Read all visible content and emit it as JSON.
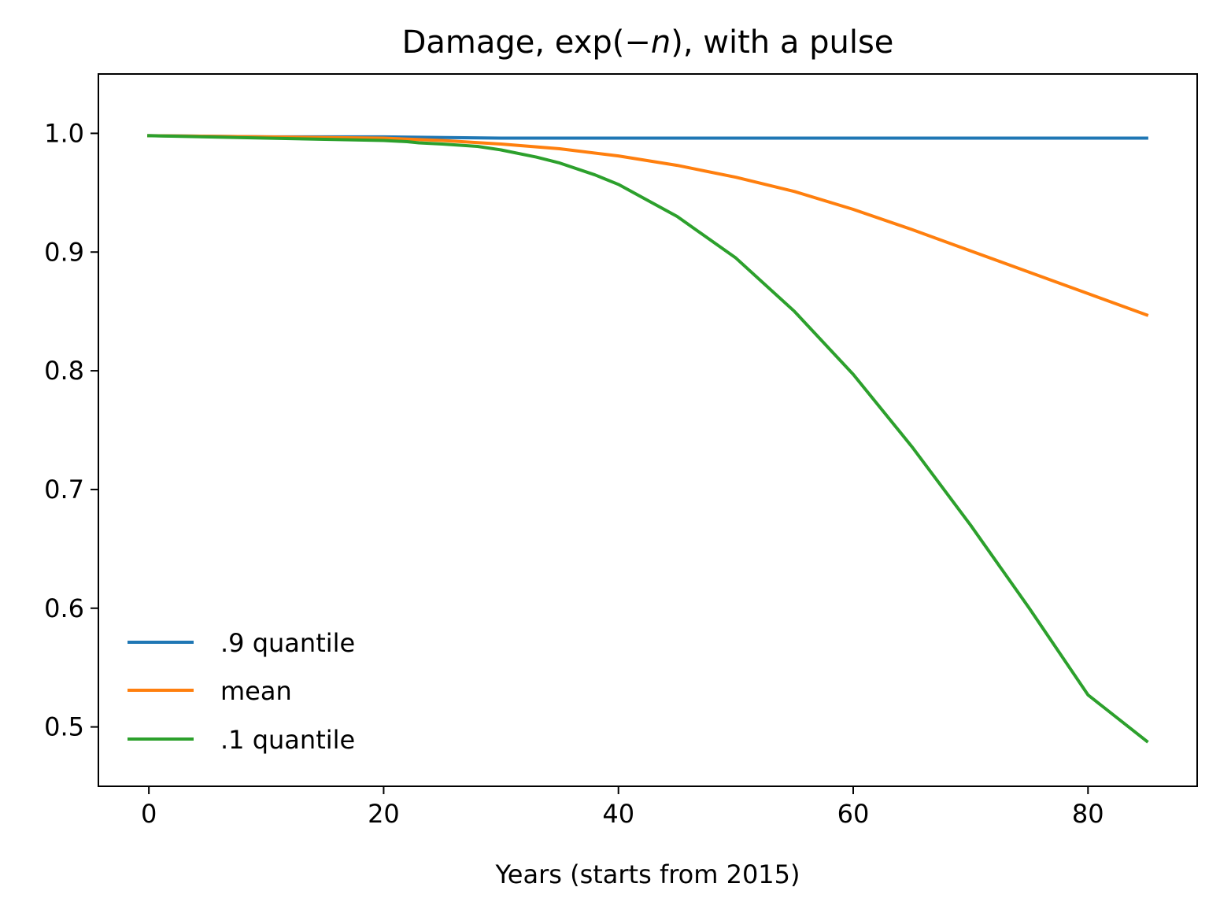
{
  "chart_data": {
    "type": "line",
    "title_parts": {
      "before": "Damage, exp(−",
      "italic": "n",
      "after": "), with a pulse"
    },
    "xlabel": "Years (starts from 2015)",
    "ylabel": "",
    "xlim": [
      -4.3,
      89.3
    ],
    "ylim": [
      0.45,
      1.05
    ],
    "xticks": [
      0,
      20,
      40,
      60,
      80
    ],
    "xtick_labels": [
      "0",
      "20",
      "40",
      "60",
      "80"
    ],
    "yticks": [
      0.5,
      0.6,
      0.7,
      0.8,
      0.9,
      1.0
    ],
    "ytick_labels": [
      "0.5",
      "0.6",
      "0.7",
      "0.8",
      "0.9",
      "1.0"
    ],
    "grid": false,
    "legend_position": "lower-left",
    "series": [
      {
        "name": ".9 quantile",
        "color": "#1f77b4",
        "x": [
          0,
          10,
          20,
          30,
          40,
          50,
          60,
          70,
          80,
          85
        ],
        "y": [
          0.998,
          0.997,
          0.997,
          0.996,
          0.996,
          0.996,
          0.996,
          0.996,
          0.996,
          0.996
        ]
      },
      {
        "name": "mean",
        "color": "#ff7f0e",
        "x": [
          0,
          10,
          20,
          25,
          30,
          35,
          40,
          45,
          50,
          55,
          60,
          65,
          70,
          75,
          80,
          85
        ],
        "y": [
          0.998,
          0.997,
          0.996,
          0.994,
          0.991,
          0.987,
          0.981,
          0.973,
          0.963,
          0.951,
          0.936,
          0.919,
          0.901,
          0.883,
          0.865,
          0.847
        ]
      },
      {
        "name": ".1 quantile",
        "color": "#2ca02c",
        "x": [
          0,
          10,
          20,
          22,
          23,
          25,
          28,
          30,
          33,
          35,
          38,
          40,
          45,
          50,
          55,
          60,
          65,
          70,
          75,
          80,
          85
        ],
        "y": [
          0.998,
          0.996,
          0.994,
          0.993,
          0.992,
          0.991,
          0.989,
          0.986,
          0.98,
          0.975,
          0.965,
          0.957,
          0.93,
          0.895,
          0.85,
          0.797,
          0.736,
          0.67,
          0.6,
          0.527,
          0.488
        ]
      }
    ]
  }
}
